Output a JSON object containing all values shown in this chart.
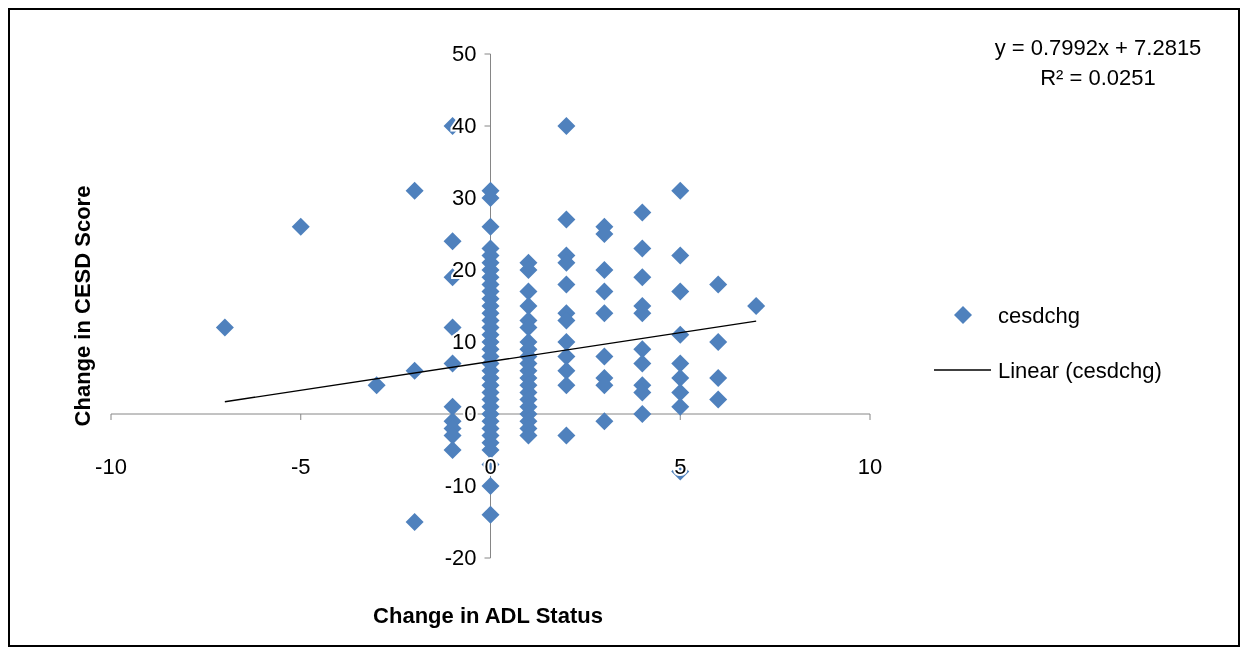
{
  "chart_data": {
    "type": "scatter",
    "xlabel": "Change in ADL Status",
    "ylabel": "Change in CESD Score",
    "xlim": [
      -10,
      10
    ],
    "xticks": [
      -10,
      -5,
      0,
      5,
      10
    ],
    "ylim": [
      -20,
      50
    ],
    "yticks": [
      -20,
      -10,
      0,
      10,
      20,
      30,
      40,
      50
    ],
    "grid": false,
    "legend": "right",
    "marker": "diamond",
    "annotations": [
      "y = 0.7992x + 7.2815",
      "R² = 0.0251"
    ],
    "series": [
      {
        "name": "cesdchg",
        "color": "#4f81bd",
        "x": [
          -7,
          -5,
          -3,
          -2,
          -2,
          -2,
          -1,
          -1,
          -1,
          -1,
          -1,
          -1,
          -1,
          -1,
          -1,
          -1,
          0,
          0,
          0,
          0,
          0,
          0,
          0,
          0,
          0,
          0,
          0,
          0,
          0,
          0,
          0,
          0,
          0,
          0,
          0,
          0,
          0,
          0,
          0,
          0,
          0,
          0,
          0,
          0,
          0,
          0,
          0,
          0,
          0,
          0,
          0,
          1,
          1,
          1,
          1,
          1,
          1,
          1,
          1,
          1,
          1,
          1,
          1,
          1,
          1,
          1,
          1,
          1,
          1,
          1,
          1,
          2,
          2,
          2,
          2,
          2,
          2,
          2,
          2,
          2,
          2,
          2,
          2,
          3,
          3,
          3,
          3,
          3,
          3,
          3,
          3,
          3,
          4,
          4,
          4,
          4,
          4,
          4,
          4,
          4,
          4,
          4,
          5,
          5,
          5,
          5,
          5,
          5,
          5,
          5,
          5,
          6,
          6,
          6,
          6,
          7
        ],
        "values": [
          12,
          26,
          4,
          31,
          6,
          -15,
          40,
          24,
          19,
          12,
          7,
          1,
          -1,
          -2,
          -3,
          -5,
          31,
          30,
          26,
          23,
          22,
          21,
          20,
          19,
          18,
          17,
          16,
          15,
          14,
          13,
          12,
          11,
          10,
          9,
          8,
          7,
          6,
          5,
          4,
          3,
          2,
          1,
          0,
          -1,
          -2,
          -3,
          -4,
          -5,
          -10,
          -14,
          -7,
          21,
          20,
          17,
          15,
          13,
          12,
          10,
          9,
          8,
          7,
          6,
          5,
          4,
          3,
          2,
          1,
          0,
          -1,
          -2,
          -3,
          40,
          27,
          22,
          21,
          18,
          14,
          13,
          10,
          8,
          6,
          4,
          -3,
          26,
          25,
          20,
          17,
          14,
          8,
          5,
          4,
          -1,
          28,
          23,
          19,
          15,
          14,
          9,
          7,
          4,
          3,
          0,
          31,
          22,
          17,
          11,
          7,
          5,
          3,
          1,
          -8,
          18,
          10,
          5,
          2,
          15
        ]
      },
      {
        "name": "Linear (cesdchg)",
        "type": "line",
        "color": "#000000",
        "line_style": "solid",
        "marker": "none",
        "x": [
          -7,
          7
        ],
        "values": [
          1.7,
          12.9
        ]
      }
    ]
  }
}
